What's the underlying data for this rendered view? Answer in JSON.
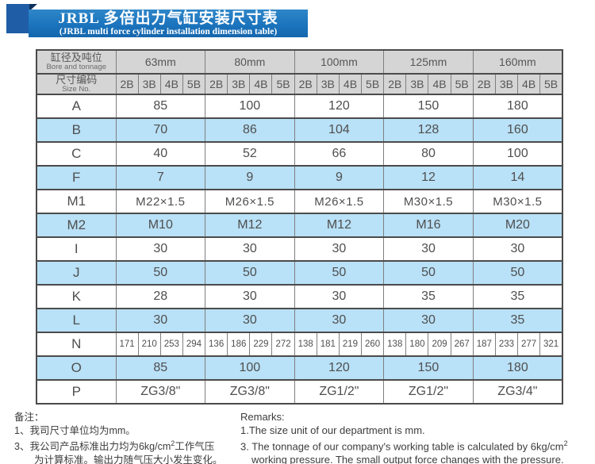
{
  "title": {
    "line1": "JRBL 多倍出力气缸安装尺寸表",
    "line2": "(JRBL multi force cylinder installation dimension table)"
  },
  "colors": {
    "banner_blue": "#1b74bd",
    "ribbon_blue": "#1f5da6",
    "ribbon_fold_navy": "#0e2f5a",
    "header_gray": "#d5d5d5",
    "row_blue": "#b9e1f7",
    "border_dark": "#4b4b4b",
    "text_gray": "#4f4f4f"
  },
  "table": {
    "corner": {
      "zh": "缸径及吨位",
      "en": "Bore and tonnage"
    },
    "size_no": {
      "zh": "尺寸编码",
      "en": "Size No."
    },
    "bores": [
      "63mm",
      "80mm",
      "100mm",
      "125mm",
      "160mm"
    ],
    "size_codes": [
      "2B",
      "3B",
      "4B",
      "5B"
    ],
    "rows": [
      {
        "label": "A",
        "type": "merged",
        "values": [
          "85",
          "100",
          "120",
          "150",
          "180"
        ]
      },
      {
        "label": "B",
        "type": "merged",
        "values": [
          "70",
          "86",
          "104",
          "128",
          "160"
        ]
      },
      {
        "label": "C",
        "type": "merged",
        "values": [
          "40",
          "52",
          "66",
          "80",
          "100"
        ]
      },
      {
        "label": "F",
        "type": "merged",
        "values": [
          "7",
          "9",
          "9",
          "12",
          "14"
        ]
      },
      {
        "label": "M1",
        "type": "merged",
        "values": [
          "M22×1.5",
          "M26×1.5",
          "M26×1.5",
          "M30×1.5",
          "M30×1.5"
        ]
      },
      {
        "label": "M2",
        "type": "merged",
        "values": [
          "M10",
          "M12",
          "M12",
          "M16",
          "M20"
        ]
      },
      {
        "label": "I",
        "type": "merged",
        "values": [
          "30",
          "30",
          "30",
          "30",
          "30"
        ]
      },
      {
        "label": "J",
        "type": "merged",
        "values": [
          "50",
          "50",
          "50",
          "50",
          "50"
        ]
      },
      {
        "label": "K",
        "type": "merged",
        "values": [
          "28",
          "30",
          "30",
          "35",
          "35"
        ]
      },
      {
        "label": "L",
        "type": "merged",
        "values": [
          "30",
          "30",
          "30",
          "30",
          "35"
        ]
      },
      {
        "label": "N",
        "type": "split",
        "values": [
          [
            "171",
            "210",
            "253",
            "294"
          ],
          [
            "136",
            "186",
            "229",
            "272"
          ],
          [
            "138",
            "181",
            "219",
            "260"
          ],
          [
            "138",
            "180",
            "209",
            "267"
          ],
          [
            "187",
            "233",
            "277",
            "321"
          ]
        ]
      },
      {
        "label": "O",
        "type": "merged",
        "values": [
          "85",
          "100",
          "120",
          "150",
          "180"
        ]
      },
      {
        "label": "P",
        "type": "merged",
        "values": [
          "ZG3/8\"",
          "ZG3/8\"",
          "ZG1/2\"",
          "ZG1/2\"",
          "ZG3/4\""
        ]
      }
    ]
  },
  "notes_zh": {
    "heading": "备注：",
    "line1": "1、我司尺寸单位均为mm。",
    "line3_pre": "3、我公司产品标准出力均为6kg/cm",
    "line3_sup": "2",
    "line3_post": "工作气压",
    "line4": "为计算标准。输出力随气压大小发生变化。"
  },
  "notes_en": {
    "heading": "Remarks:",
    "line1": "1.The size unit of our department is mm.",
    "line3_pre": "3. The tonnage of our company's working table is calculated by 6kg/cm",
    "line3_sup": "2",
    "line4": "working pressure. The small output force changes with the pressure."
  }
}
